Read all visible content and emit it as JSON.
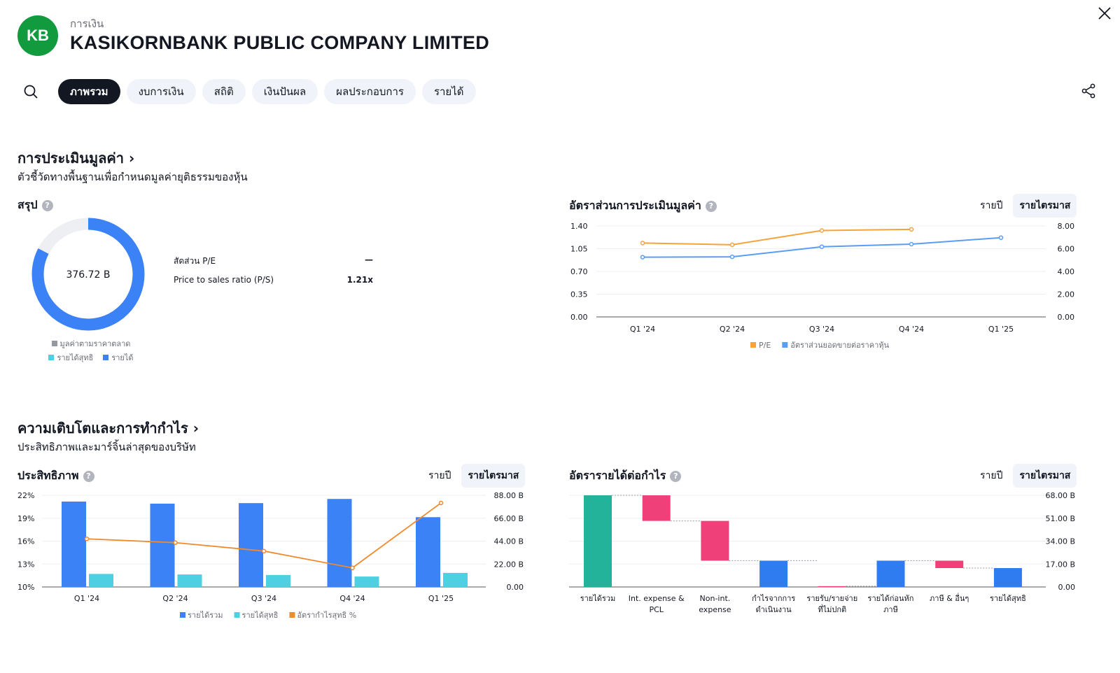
{
  "header": {
    "logo_text": "KB",
    "sector": "การเงิน",
    "company": "KASIKORNBANK PUBLIC COMPANY LIMITED"
  },
  "tabs": [
    "ภาพรวม",
    "งบการเงิน",
    "สถิติ",
    "เงินปันผล",
    "ผลประกอบการ",
    "รายได้"
  ],
  "valuation": {
    "title": "การประเมินมูลค่า ›",
    "subtitle": "ตัวชี้วัดทางพื้นฐานเพื่อกำหนดมูลค่ายุติธรรมของหุ้น",
    "summary": {
      "title": "สรุป",
      "center_value": "376.72 B",
      "ratios": [
        {
          "label": "สัดส่วน P/E",
          "value": "—"
        },
        {
          "label": "Price to sales ratio (P/S)",
          "value": "1.21x"
        }
      ],
      "legend": [
        {
          "label": "มูลค่าตามราคาตลาด",
          "color": "#9598a1"
        },
        {
          "label": "รายได้สุทธิ",
          "color": "#4dd0e1"
        },
        {
          "label": "รายได้",
          "color": "#3b82f6"
        }
      ]
    },
    "ratio_chart": {
      "title": "อัตราส่วนการประเมินมูลค่า",
      "toggle": [
        "รายปี",
        "รายไตรมาส"
      ]
    }
  },
  "growth": {
    "title": "ความเติบโตและการทำกำไร ›",
    "subtitle": "ประสิทธิภาพและมาร์จิ้นล่าสุดของบริษัท",
    "efficiency": {
      "title": "ประสิทธิภาพ",
      "toggle": [
        "รายปี",
        "รายไตรมาส"
      ]
    },
    "waterfall": {
      "title": "อัตรารายได้ต่อกำไร",
      "toggle": [
        "รายปี",
        "รายไตรมาส"
      ]
    }
  },
  "colors": {
    "revenue": "#3b82f6",
    "net_income": "#4dd0e1",
    "pe": "#f7a33b",
    "ps": "#5b9cf6",
    "margin": "#f08a2c",
    "waterfall_total": "#22b39a",
    "waterfall_neg": "#f0407a",
    "waterfall_sub": "#2f7bf0"
  },
  "chart_data": [
    {
      "type": "pie",
      "id": "summary",
      "categories": [
        "มูลค่าตามราคาตลาด",
        "รายได้"
      ],
      "values": [
        376.72,
        311
      ],
      "center_label": "376.72 B"
    },
    {
      "type": "line",
      "id": "valuation-ratios",
      "x": [
        "Q1 '24",
        "Q2 '24",
        "Q3 '24",
        "Q4 '24",
        "Q1 '25"
      ],
      "ylim_left": [
        0,
        1.4
      ],
      "yticks_left": [
        "1.40",
        "1.05",
        "0.70",
        "0.35",
        "0.00"
      ],
      "ylim_right": [
        0,
        8
      ],
      "yticks_right": [
        "8.00",
        "6.00",
        "4.00",
        "2.00",
        "0.00"
      ],
      "series": [
        {
          "name": "P/E",
          "axis": "right",
          "values": [
            6.5,
            6.35,
            7.6,
            7.7,
            null
          ]
        },
        {
          "name": "อัตราส่วนยอดขายต่อราคาหุ้น",
          "axis": "left",
          "values": [
            0.92,
            0.925,
            1.08,
            1.12,
            1.22
          ]
        }
      ]
    },
    {
      "type": "bar",
      "id": "efficiency",
      "categories": [
        "Q1 '24",
        "Q2 '24",
        "Q3 '24",
        "Q4 '24",
        "Q1 '25"
      ],
      "ylim_left": [
        10,
        22
      ],
      "yticks_left": [
        "22%",
        "19%",
        "16%",
        "13%",
        "10%"
      ],
      "ylim_right": [
        0,
        88
      ],
      "yticks_right": [
        "88.00 B",
        "66.00 B",
        "44.00 B",
        "22.00 B",
        "0.00"
      ],
      "series": [
        {
          "name": "รายได้รวม",
          "kind": "bar",
          "axis": "right",
          "values": [
            82,
            80,
            80.5,
            84.5,
            67
          ]
        },
        {
          "name": "รายได้สุทธิ",
          "kind": "bar",
          "axis": "right",
          "values": [
            12.5,
            12,
            11.5,
            10,
            13.5
          ]
        },
        {
          "name": "อัตรากำไรสุทธิ %",
          "kind": "line",
          "axis": "left",
          "values": [
            16.3,
            15.8,
            14.7,
            12.5,
            21.0
          ]
        }
      ]
    },
    {
      "type": "bar",
      "id": "revenue-to-profit",
      "categories": [
        "รายได้รวม",
        "Int. expense & PCL",
        "Non-int. expense",
        "กำไรจากการดำเนินงาน",
        "รายรับ/รายจ่ายที่ไม่ปกติ",
        "รายได้ก่อนหักภาษี",
        "ภาษี & อื่นๆ",
        "รายได้สุทธิ"
      ],
      "category_lines": [
        [
          "รายได้รวม"
        ],
        [
          "Int. expense &",
          "PCL"
        ],
        [
          "Non-int.",
          "expense"
        ],
        [
          "กำไรจากการ",
          "ดำเนินงาน"
        ],
        [
          "รายรับ/รายจ่าย",
          "ที่ไม่ปกติ"
        ],
        [
          "รายได้ก่อนหัก",
          "ภาษี"
        ],
        [
          "ภาษี & อื่นๆ"
        ],
        [
          "รายได้สุทธิ"
        ]
      ],
      "ylim": [
        0,
        68
      ],
      "yticks": [
        "68.00 B",
        "51.00 B",
        "34.00 B",
        "17.00 B",
        "0.00"
      ],
      "bars": [
        {
          "from": 0,
          "to": 68,
          "kind": "total"
        },
        {
          "from": 68,
          "to": 49,
          "kind": "neg"
        },
        {
          "from": 49,
          "to": 19.5,
          "kind": "neg"
        },
        {
          "from": 0,
          "to": 19.5,
          "kind": "sub"
        },
        {
          "from": 0,
          "to": 0.6,
          "kind": "neg"
        },
        {
          "from": 0,
          "to": 19.5,
          "kind": "sub"
        },
        {
          "from": 19.5,
          "to": 14,
          "kind": "neg"
        },
        {
          "from": 0,
          "to": 14,
          "kind": "sub"
        }
      ]
    }
  ]
}
